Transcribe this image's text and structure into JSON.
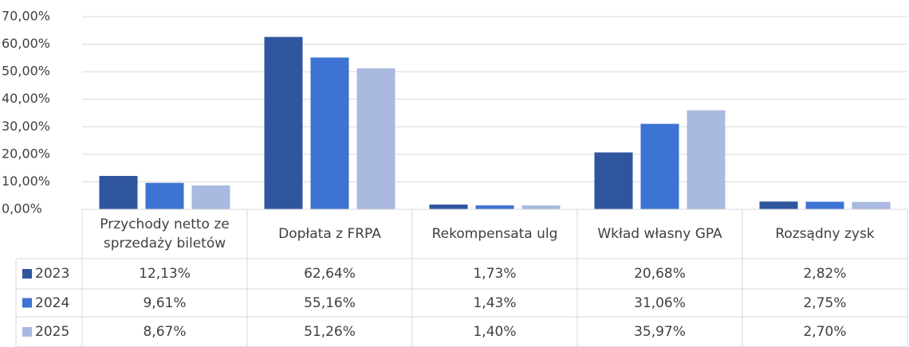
{
  "chart_data": {
    "type": "bar",
    "categories": [
      "Przychody netto ze sprzedaży biletów",
      "Dopłata z FRPA",
      "Rekompensata ulg",
      "Wkład własny GPA",
      "Rozsądny zysk"
    ],
    "series": [
      {
        "name": "2023",
        "color": "#2f559f",
        "values": [
          12.13,
          62.64,
          1.73,
          20.68,
          2.82
        ],
        "value_labels": [
          "12,13%",
          "62,64%",
          "1,73%",
          "20,68%",
          "2,82%"
        ]
      },
      {
        "name": "2024",
        "color": "#3d73d3",
        "values": [
          9.61,
          55.16,
          1.43,
          31.06,
          2.75
        ],
        "value_labels": [
          "9,61%",
          "55,16%",
          "1,43%",
          "31,06%",
          "2,75%"
        ]
      },
      {
        "name": "2025",
        "color": "#a9b9e0",
        "values": [
          8.67,
          51.26,
          1.4,
          35.97,
          2.7
        ],
        "value_labels": [
          "8,67%",
          "51,26%",
          "1,40%",
          "35,97%",
          "2,70%"
        ]
      }
    ],
    "ylim": [
      0,
      70
    ],
    "yticks": [
      {
        "value": 0,
        "label": "0,00%"
      },
      {
        "value": 10,
        "label": "10,00%"
      },
      {
        "value": 20,
        "label": "20,00%"
      },
      {
        "value": 30,
        "label": "30,00%"
      },
      {
        "value": 40,
        "label": "40,00%"
      },
      {
        "value": 50,
        "label": "50,00%"
      },
      {
        "value": 60,
        "label": "60,00%"
      },
      {
        "value": 70,
        "label": "70,00%"
      }
    ],
    "grid": true,
    "data_table": true
  }
}
